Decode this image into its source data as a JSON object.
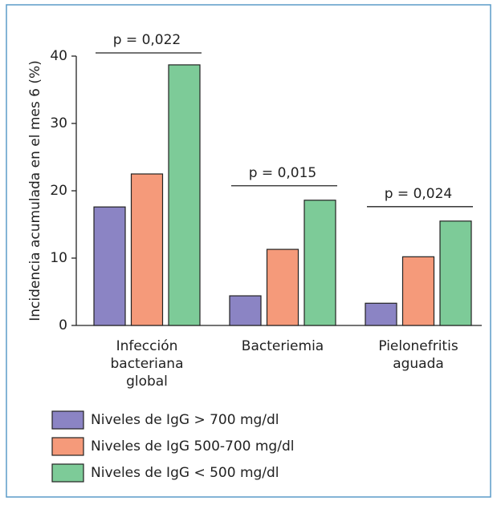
{
  "chart_data": {
    "type": "bar",
    "y_label": "Incidencia acumulada en el mes 6 (%)",
    "categories": [
      [
        "Infección",
        "bacteriana",
        "global"
      ],
      [
        "Bacteriemia"
      ],
      [
        "Pielonefritis",
        "aguada"
      ]
    ],
    "annotations": [
      "p = 0,022",
      "p = 0,015",
      "p = 0,024"
    ],
    "series": [
      {
        "name": "Niveles de IgG > 700 mg/dl",
        "color": "#8b84c4",
        "values": [
          17.6,
          4.4,
          3.3
        ]
      },
      {
        "name": "Niveles de IgG 500-700 mg/dl",
        "color": "#f59a7a",
        "values": [
          22.5,
          11.3,
          10.2
        ]
      },
      {
        "name": "Niveles de IgG < 500 mg/dl",
        "color": "#7dcb98",
        "values": [
          38.7,
          18.6,
          15.5
        ]
      }
    ],
    "ylim": [
      0,
      40
    ],
    "yticks": [
      0,
      10,
      20,
      30,
      40
    ],
    "grid": false
  }
}
